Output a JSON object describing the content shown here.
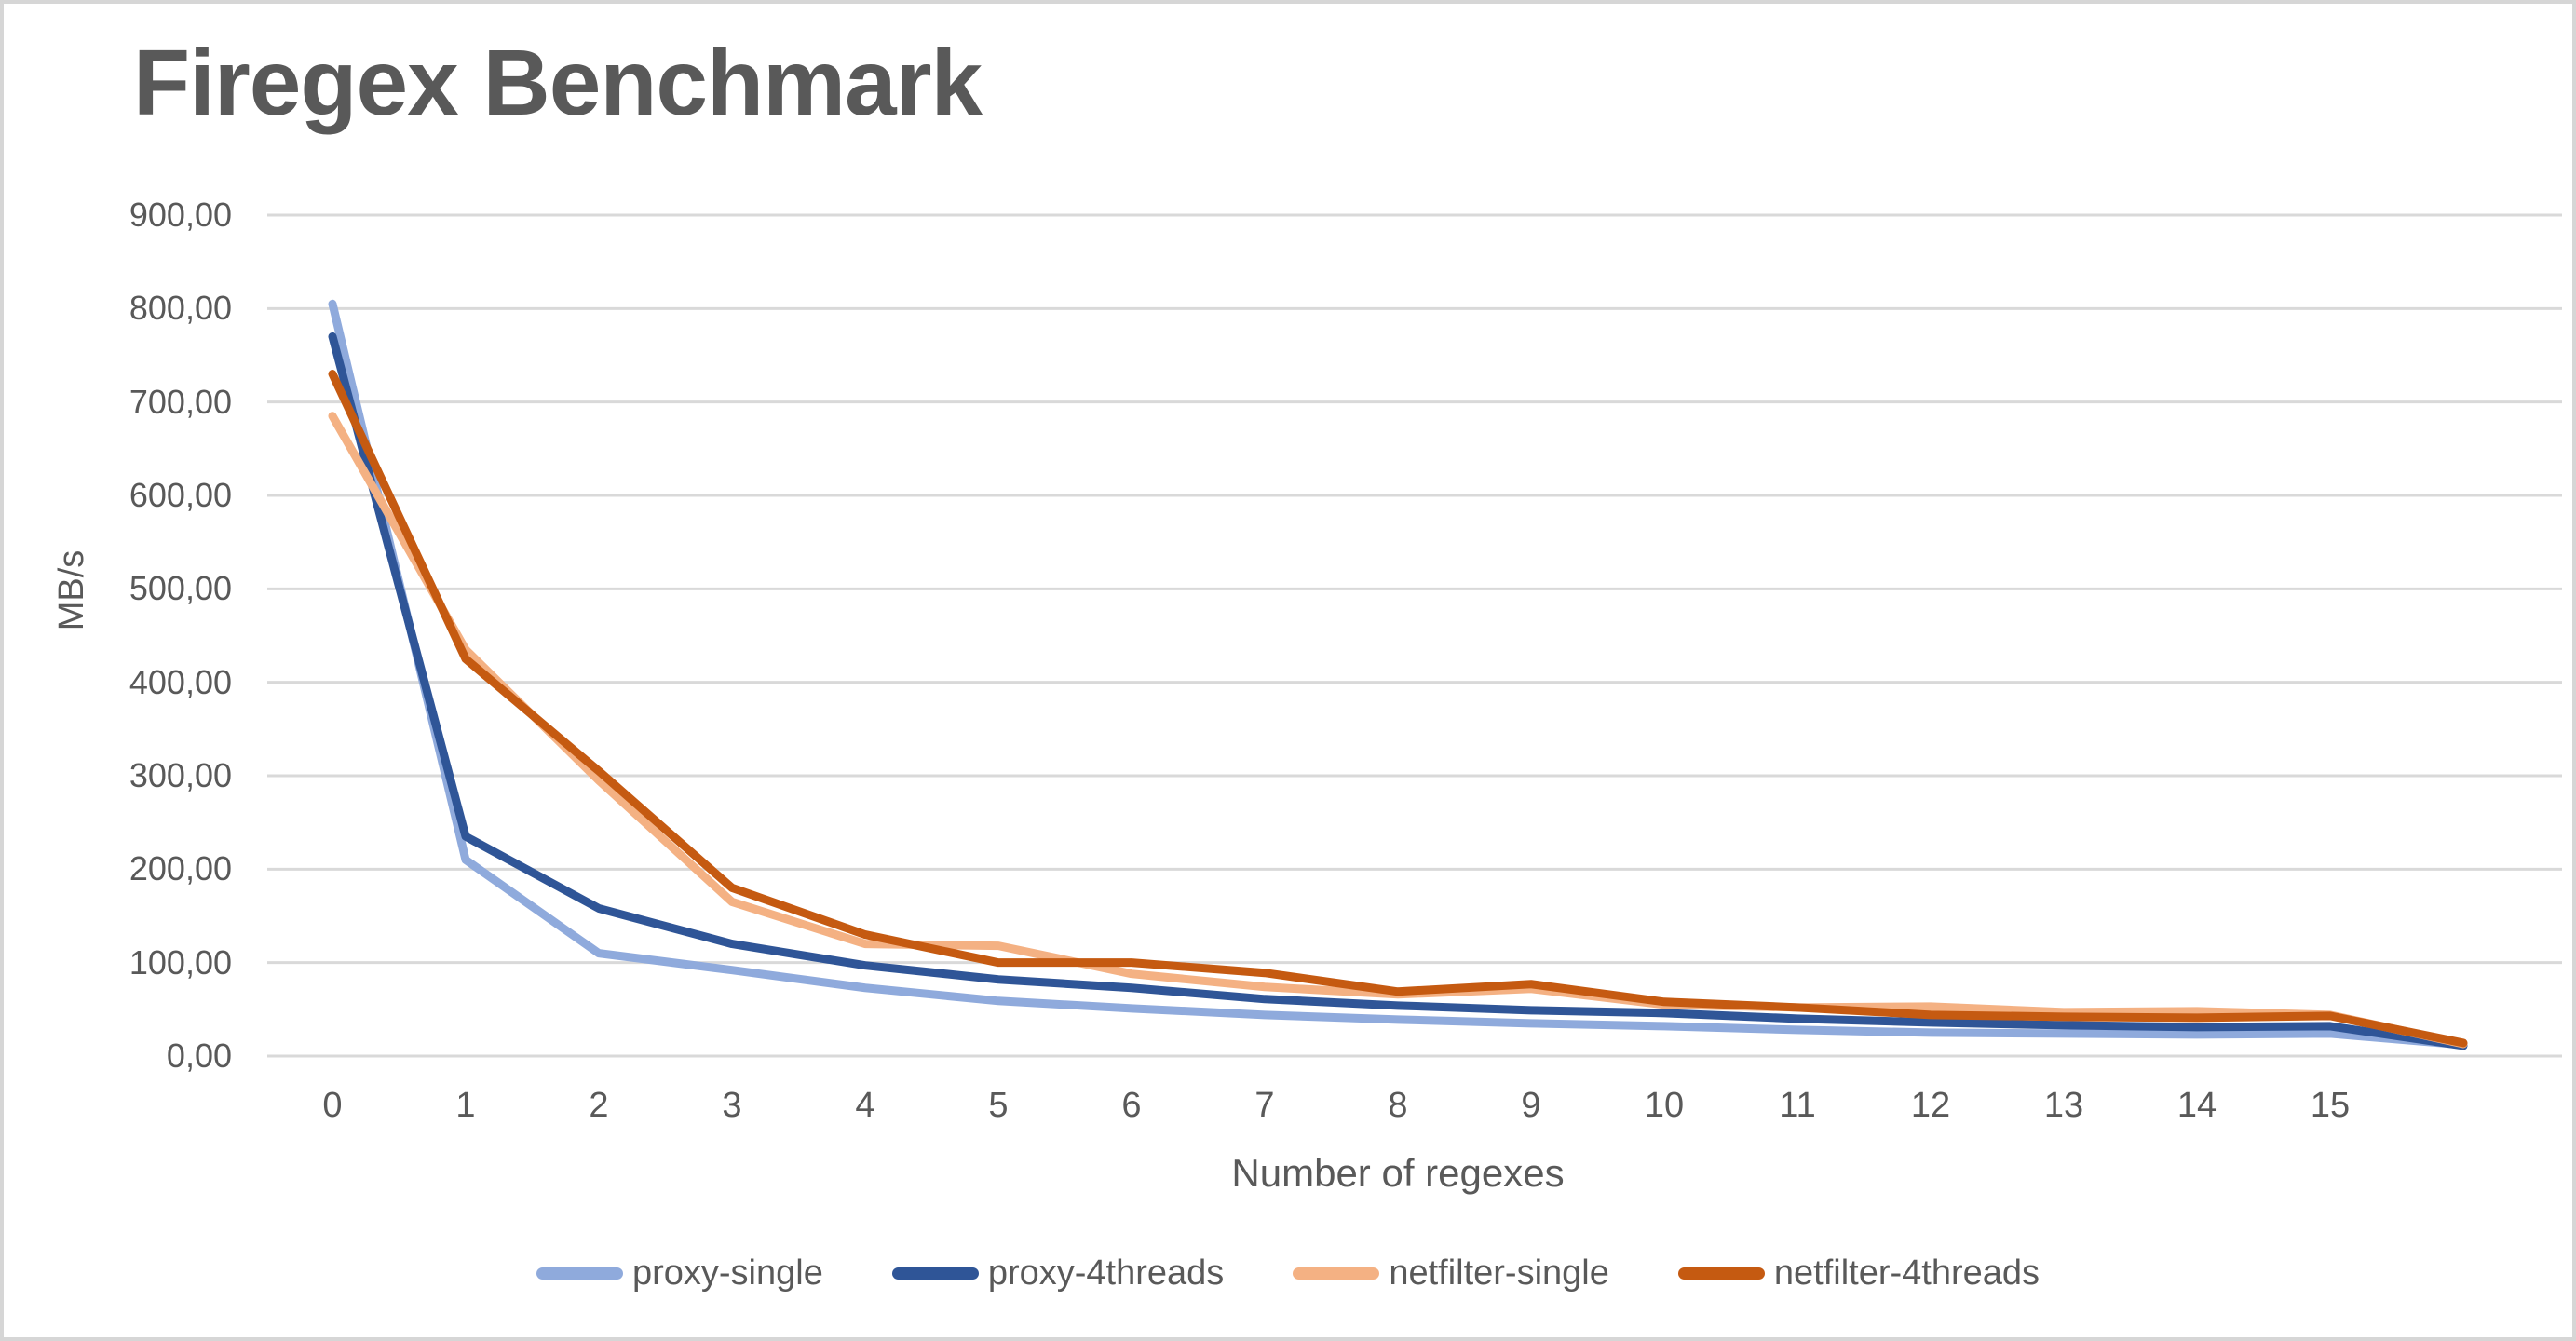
{
  "title": "Firegex Benchmark",
  "y_axis": {
    "label": "MB/s",
    "ticks": [
      "0,00",
      "100,00",
      "200,00",
      "300,00",
      "400,00",
      "500,00",
      "600,00",
      "700,00",
      "800,00",
      "900,00"
    ]
  },
  "x_axis": {
    "label": "Number of regexes",
    "ticks": [
      "0",
      "1",
      "2",
      "3",
      "4",
      "5",
      "6",
      "7",
      "8",
      "9",
      "10",
      "11",
      "12",
      "13",
      "14",
      "15"
    ]
  },
  "colors": {
    "title_text": "#595959",
    "axis_text": "#595959",
    "gridline": "#d9d9d9",
    "page_border": "#d6d6d6"
  },
  "chart_data": {
    "type": "line",
    "x": [
      0,
      1,
      2,
      3,
      4,
      5,
      6,
      7,
      8,
      9,
      10,
      11,
      12,
      13,
      14,
      15,
      16
    ],
    "x_ticks_shown": [
      "0",
      "1",
      "2",
      "3",
      "4",
      "5",
      "6",
      "7",
      "8",
      "9",
      "10",
      "11",
      "12",
      "13",
      "14",
      "15"
    ],
    "series": [
      {
        "name": "proxy-single",
        "color": "#8FAADC",
        "values": [
          805,
          210,
          110,
          92,
          73,
          59,
          51,
          44,
          39,
          35,
          32,
          28,
          25,
          24,
          23,
          24,
          12
        ]
      },
      {
        "name": "proxy-4threads",
        "color": "#2F5597",
        "values": [
          770,
          235,
          158,
          120,
          97,
          82,
          73,
          61,
          54,
          49,
          46,
          40,
          36,
          33,
          31,
          32,
          11
        ]
      },
      {
        "name": "netfilter-single",
        "color": "#F4B183",
        "values": [
          685,
          435,
          295,
          165,
          120,
          118,
          88,
          74,
          66,
          72,
          55,
          52,
          53,
          47,
          48,
          44,
          13
        ]
      },
      {
        "name": "netfilter-4threads",
        "color": "#C55A11",
        "values": [
          730,
          425,
          305,
          180,
          130,
          100,
          100,
          89,
          69,
          77,
          58,
          52,
          44,
          42,
          41,
          43,
          14
        ]
      }
    ],
    "title": "Firegex Benchmark",
    "xlabel": "Number of regexes",
    "ylabel": "MB/s",
    "ylim": [
      0,
      900
    ],
    "y_gridline_step": 100,
    "grid": true,
    "legend_position": "bottom"
  }
}
